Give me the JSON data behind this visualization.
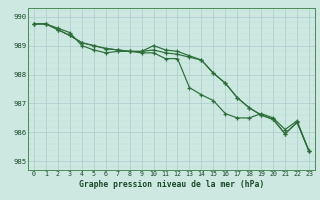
{
  "title": "Graphe pression niveau de la mer (hPa)",
  "x_labels": [
    "0",
    "1",
    "2",
    "3",
    "4",
    "5",
    "6",
    "7",
    "8",
    "9",
    "10",
    "11",
    "12",
    "13",
    "14",
    "15",
    "16",
    "17",
    "18",
    "19",
    "20",
    "21",
    "22",
    "23"
  ],
  "ylim": [
    984.7,
    990.3
  ],
  "yticks": [
    985,
    986,
    987,
    988,
    989,
    990
  ],
  "bg_color": "#cce8e0",
  "grid_major_color": "#aacccc",
  "grid_minor_color": "#bdddd8",
  "line_color": "#2d6e3a",
  "series1": [
    989.75,
    989.75,
    989.6,
    989.45,
    989.0,
    988.85,
    988.75,
    988.8,
    988.8,
    988.75,
    988.75,
    988.55,
    988.55,
    987.55,
    987.3,
    987.1,
    986.65,
    986.5,
    986.5,
    986.65,
    986.5,
    986.1,
    986.4,
    985.35
  ],
  "series2": [
    989.75,
    989.75,
    989.55,
    989.35,
    989.1,
    989.0,
    988.9,
    988.85,
    988.8,
    988.8,
    989.0,
    988.85,
    988.8,
    988.65,
    988.5,
    988.05,
    987.7,
    987.2,
    986.85,
    986.6,
    986.45,
    985.95,
    986.35,
    985.35
  ],
  "series3": [
    989.75,
    989.75,
    989.55,
    989.35,
    989.1,
    989.0,
    988.9,
    988.85,
    988.8,
    988.8,
    988.85,
    988.75,
    988.7,
    988.6,
    988.5,
    988.05,
    987.7,
    987.2,
    986.85,
    986.6,
    986.45,
    985.95,
    986.35,
    985.35
  ]
}
